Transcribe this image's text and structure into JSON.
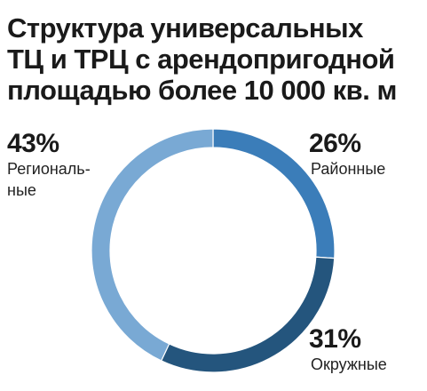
{
  "chart_data": {
    "type": "pie",
    "variant": "donut",
    "title_lines": [
      "Структура универсальных",
      "ТЦ и ТРЦ с арендопригодной",
      "площадью более 10 000 кв. м"
    ],
    "slices": [
      {
        "value": 26,
        "value_label": "26%",
        "label_lines": [
          "Районные"
        ],
        "color": "#3b7db9"
      },
      {
        "value": 31,
        "value_label": "31%",
        "label_lines": [
          "Окружные"
        ],
        "color": "#24557d"
      },
      {
        "value": 43,
        "value_label": "43%",
        "label_lines": [
          "Региональ-",
          "ные"
        ],
        "color": "#79a9d4"
      }
    ]
  }
}
